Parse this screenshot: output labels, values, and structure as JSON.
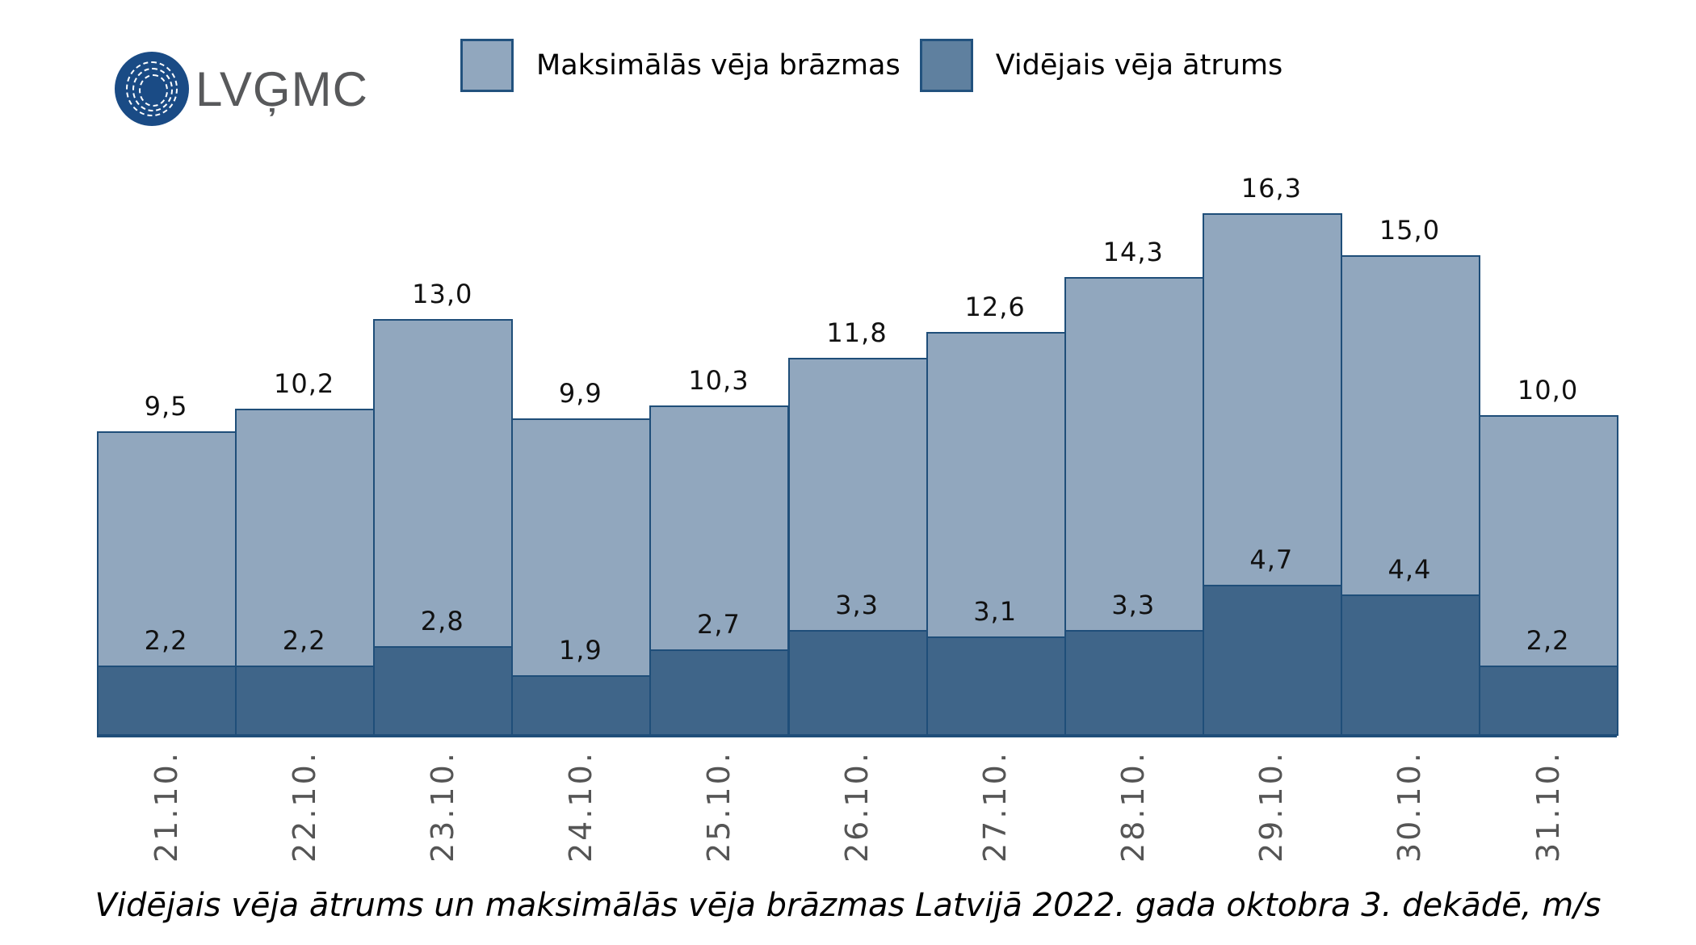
{
  "logo": {
    "text": "LVĢMC"
  },
  "legend": [
    {
      "label": "Maksimālās vēja brāzmas",
      "color": "#91a7be"
    },
    {
      "label": "Vidējais vēja ātrums",
      "color": "#5f809f"
    }
  ],
  "caption": "Vidējais vēja ātrums un maksimālās vēja brāzmas Latvijā 2022. gada oktobra 3. dekādē, m/s",
  "chart_data": {
    "type": "bar",
    "title": "Vidējais vēja ātrums un maksimālās vēja brāzmas Latvijā 2022. gada oktobra 3. dekādē, m/s",
    "xlabel": "",
    "ylabel": "m/s",
    "categories": [
      "21.10.",
      "22.10.",
      "23.10.",
      "24.10.",
      "25.10.",
      "26.10.",
      "27.10.",
      "28.10.",
      "29.10.",
      "30.10.",
      "31.10."
    ],
    "series": [
      {
        "name": "Maksimālās vēja brāzmas",
        "values": [
          9.5,
          10.2,
          13.0,
          9.9,
          10.3,
          11.8,
          12.6,
          14.3,
          16.3,
          15.0,
          10.0
        ],
        "labels": [
          "9,5",
          "10,2",
          "13,0",
          "9,9",
          "10,3",
          "11,8",
          "12,6",
          "14,3",
          "16,3",
          "15,0",
          "10,0"
        ],
        "color": "#91a7be"
      },
      {
        "name": "Vidējais vēja ātrums",
        "values": [
          2.2,
          2.2,
          2.8,
          1.9,
          2.7,
          3.3,
          3.1,
          3.3,
          4.7,
          4.4,
          2.2
        ],
        "labels": [
          "2,2",
          "2,2",
          "2,8",
          "1,9",
          "2,7",
          "3,3",
          "3,1",
          "3,3",
          "4,7",
          "4,4",
          "2,2"
        ],
        "color": "#3f6589"
      }
    ],
    "grid": false,
    "legend_position": "top",
    "overlapped": true
  }
}
